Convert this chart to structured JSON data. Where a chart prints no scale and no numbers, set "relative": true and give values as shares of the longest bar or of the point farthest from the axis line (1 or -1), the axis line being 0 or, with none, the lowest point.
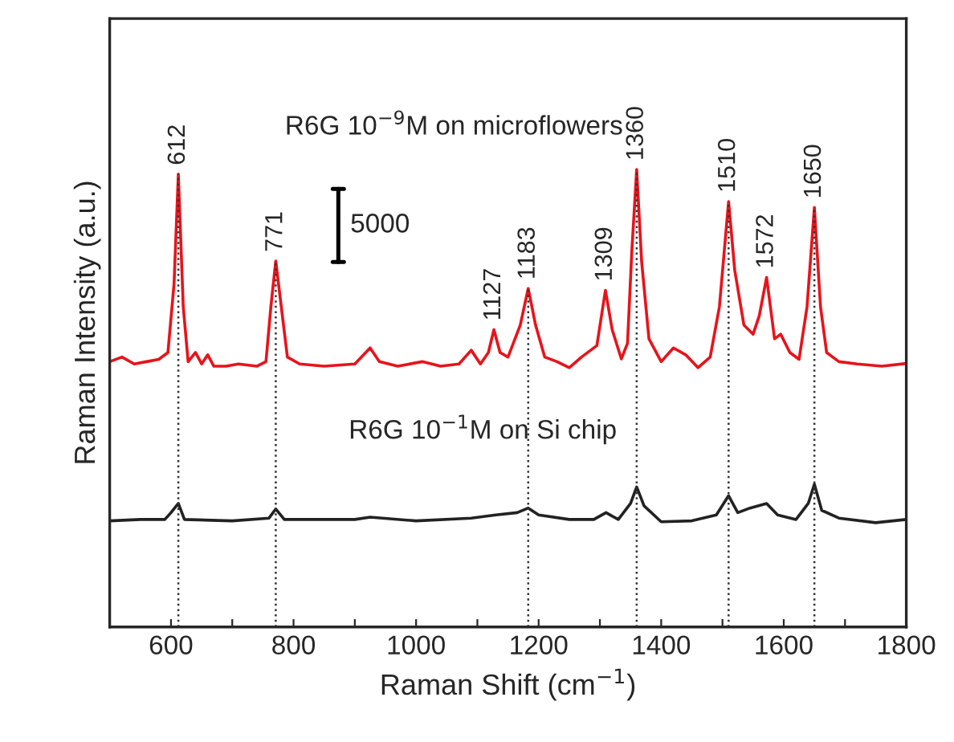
{
  "chart_data": {
    "type": "line",
    "relative": true,
    "xlabel": "Raman Shift (cm$^{−1}$)",
    "ylabel": "Raman Intensity (a.u.)",
    "xlim": [
      500,
      1800
    ],
    "xticks": [
      {
        "value": 500,
        "label": null
      },
      600,
      {
        "value": 700,
        "label": null
      },
      800,
      {
        "value": 900,
        "label": null
      },
      1000,
      {
        "value": 1100,
        "label": null
      },
      1200,
      {
        "value": 1300,
        "label": null
      },
      1400,
      {
        "value": 1500,
        "label": null
      },
      1600,
      {
        "value": 1700,
        "label": null
      },
      1800
    ],
    "tick_labels": "x",
    "grid": false,
    "legend": false,
    "line_style": "solid",
    "marker": "none",
    "series": [
      {
        "name": "R6G 10$^{−9}$M on microflowers",
        "color": "#e8131b",
        "x": [
          500,
          520,
          540,
          560,
          580,
          595,
          605,
          612,
          620,
          628,
          640,
          650,
          660,
          670,
          690,
          710,
          740,
          755,
          763,
          771,
          780,
          790,
          810,
          850,
          900,
          925,
          940,
          970,
          1010,
          1040,
          1070,
          1090,
          1105,
          1118,
          1127,
          1137,
          1150,
          1170,
          1183,
          1195,
          1210,
          1230,
          1250,
          1270,
          1295,
          1309,
          1320,
          1335,
          1345,
          1352,
          1360,
          1368,
          1380,
          1400,
          1420,
          1440,
          1460,
          1480,
          1495,
          1510,
          1520,
          1535,
          1550,
          1560,
          1572,
          1585,
          1595,
          1610,
          1625,
          1638,
          1650,
          1660,
          1670,
          1690,
          1720,
          1760,
          1800
        ],
        "values": [
          0.58,
          0.59,
          0.575,
          0.58,
          0.585,
          0.6,
          0.75,
          0.99,
          0.7,
          0.58,
          0.6,
          0.575,
          0.595,
          0.57,
          0.57,
          0.575,
          0.57,
          0.58,
          0.7,
          0.8,
          0.7,
          0.59,
          0.575,
          0.57,
          0.575,
          0.61,
          0.58,
          0.57,
          0.58,
          0.57,
          0.575,
          0.605,
          0.575,
          0.6,
          0.65,
          0.6,
          0.59,
          0.66,
          0.74,
          0.66,
          0.59,
          0.58,
          0.567,
          0.59,
          0.615,
          0.736,
          0.65,
          0.586,
          0.62,
          0.82,
          1.0,
          0.8,
          0.63,
          0.58,
          0.61,
          0.595,
          0.567,
          0.59,
          0.7,
          0.93,
          0.78,
          0.66,
          0.64,
          0.68,
          0.764,
          0.63,
          0.64,
          0.6,
          0.585,
          0.7,
          0.917,
          0.7,
          0.6,
          0.58,
          0.575,
          0.57,
          0.576
        ]
      },
      {
        "name": "R6G 10$^{−1}$M on Si chip",
        "color": "#222222",
        "x": [
          500,
          550,
          590,
          600,
          612,
          622,
          700,
          760,
          771,
          785,
          900,
          925,
          1000,
          1090,
          1130,
          1165,
          1183,
          1200,
          1250,
          1290,
          1310,
          1330,
          1350,
          1360,
          1372,
          1400,
          1450,
          1490,
          1510,
          1525,
          1545,
          1572,
          1590,
          1620,
          1640,
          1650,
          1662,
          1690,
          1750,
          1800
        ],
        "values": [
          0.232,
          0.235,
          0.235,
          0.25,
          0.27,
          0.235,
          0.232,
          0.238,
          0.258,
          0.235,
          0.235,
          0.24,
          0.232,
          0.238,
          0.245,
          0.25,
          0.26,
          0.245,
          0.235,
          0.235,
          0.25,
          0.235,
          0.27,
          0.306,
          0.265,
          0.23,
          0.232,
          0.245,
          0.287,
          0.25,
          0.26,
          0.27,
          0.245,
          0.235,
          0.27,
          0.312,
          0.255,
          0.238,
          0.228,
          0.235
        ]
      }
    ],
    "ref_lines": [
      {
        "axis": "x",
        "value": 612,
        "line_style": "dotted",
        "color": "#333333"
      },
      {
        "axis": "x",
        "value": 771,
        "line_style": "dotted",
        "color": "#333333"
      },
      {
        "axis": "x",
        "value": 1183,
        "line_style": "dotted",
        "color": "#333333"
      },
      {
        "axis": "x",
        "value": 1360,
        "line_style": "dotted",
        "color": "#333333"
      },
      {
        "axis": "x",
        "value": 1510,
        "line_style": "dotted",
        "color": "#333333"
      },
      {
        "axis": "x",
        "value": 1650,
        "line_style": "dotted",
        "color": "#333333"
      }
    ],
    "annotations": [
      {
        "text": "612",
        "x": 612,
        "y": 0.99
      },
      {
        "text": "771",
        "x": 771,
        "y": 0.8
      },
      {
        "text": "1127",
        "x": 1127,
        "y": 0.65
      },
      {
        "text": "1183",
        "x": 1183,
        "y": 0.74
      },
      {
        "text": "1309",
        "x": 1309,
        "y": 0.736
      },
      {
        "text": "1360",
        "x": 1360,
        "y": 1.0
      },
      {
        "text": "1510",
        "x": 1510,
        "y": 0.93
      },
      {
        "text": "1572",
        "x": 1572,
        "y": 0.764
      },
      {
        "text": "1650",
        "x": 1650,
        "y": 0.917
      },
      "5000"
    ]
  }
}
